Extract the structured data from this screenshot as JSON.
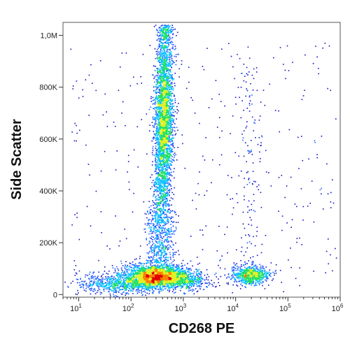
{
  "chart_data": {
    "type": "scatter",
    "subtype": "flow cytometry density dot plot",
    "xlabel": "CD268 PE",
    "ylabel": "Side Scatter",
    "x_scale": "log",
    "x_range": [
      5,
      1000000
    ],
    "x_ticks": [
      {
        "value": 10,
        "label": "1",
        "exp": "10"
      },
      {
        "value": 100,
        "label": "2",
        "exp": "10"
      },
      {
        "value": 1000,
        "label": "3",
        "exp": "10"
      },
      {
        "value": 10000,
        "label": "4",
        "exp": "10"
      },
      {
        "value": 100000,
        "label": "5",
        "exp": "10"
      },
      {
        "value": 1000000,
        "label": "6",
        "exp": "10"
      }
    ],
    "y_scale": "linear",
    "y_range": [
      -10000,
      1050000
    ],
    "y_ticks": [
      {
        "value": 0,
        "label": "0"
      },
      {
        "value": 200000,
        "label": "200K"
      },
      {
        "value": 400000,
        "label": "400K"
      },
      {
        "value": 600000,
        "label": "600K"
      },
      {
        "value": 800000,
        "label": "800K"
      },
      {
        "value": 1000000,
        "label": "1,0M"
      }
    ],
    "populations": [
      {
        "name": "CD268 low, low SSC",
        "x_center": 450,
        "y_center": 60000,
        "density": "highest"
      },
      {
        "name": "CD268 low, high SSC (vertical streak)",
        "x_center": 600,
        "y_center": 650000,
        "y_span": [
          100000,
          1050000
        ],
        "density": "high"
      },
      {
        "name": "CD268 high, low SSC",
        "x_center": 30000,
        "y_center": 60000,
        "density": "medium"
      }
    ],
    "color_scale": [
      "#1010c8",
      "#2060ff",
      "#00c0ff",
      "#20e060",
      "#e0f020",
      "#ff8000",
      "#e00000"
    ],
    "grid": false,
    "legend": "none"
  }
}
